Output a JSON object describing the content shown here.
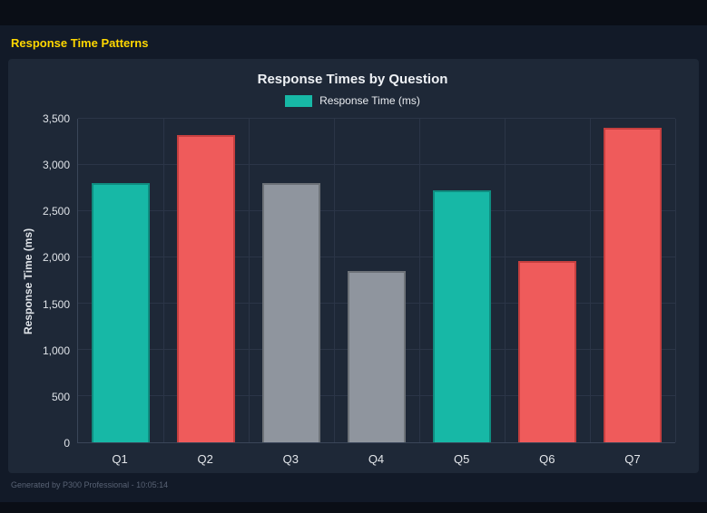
{
  "page": {
    "heading": "Response Time Patterns",
    "heading_color": "#ffd700",
    "footer": "Generated by P300 Professional - 10:05:14"
  },
  "chart_data": {
    "type": "bar",
    "title": "Response Times by Question",
    "legend": [
      {
        "label": "Response Time (ms)",
        "color": "#17b8a6"
      }
    ],
    "legend_position": "top",
    "categories": [
      "Q1",
      "Q2",
      "Q3",
      "Q4",
      "Q5",
      "Q6",
      "Q7"
    ],
    "values": [
      2800,
      3320,
      2800,
      1850,
      2730,
      1960,
      3400
    ],
    "bar_colors": [
      "#17b8a6",
      "#ef5b5b",
      "#8f959e",
      "#8f959e",
      "#17b8a6",
      "#ef5b5b",
      "#ef5b5b"
    ],
    "bar_border_colors": [
      "#0f8d80",
      "#c63f3f",
      "#6d7278",
      "#6d7278",
      "#0f8d80",
      "#c63f3f",
      "#c63f3f"
    ],
    "xlabel": "",
    "ylabel": "Response Time (ms)",
    "ylim": [
      0,
      3500
    ],
    "yticks": [
      0,
      500,
      1000,
      1500,
      2000,
      2500,
      3000,
      3500
    ],
    "ytick_labels": [
      "0",
      "500",
      "1,000",
      "1,500",
      "2,000",
      "2,500",
      "3,000",
      "3,500"
    ],
    "grid": true,
    "background": "#1e2837",
    "page_background": "#121a28"
  }
}
